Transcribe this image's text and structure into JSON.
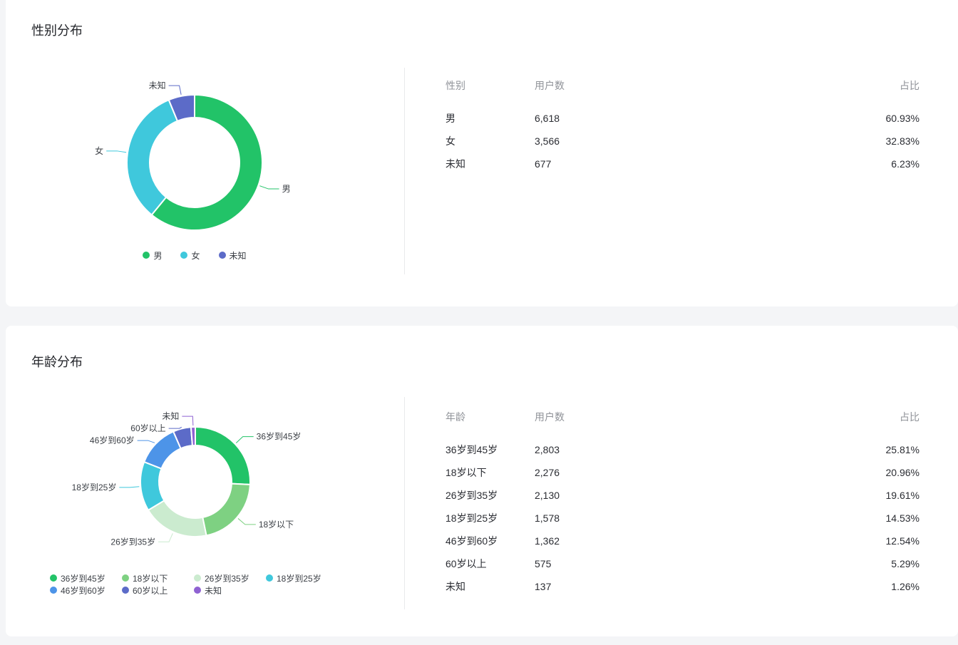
{
  "page": {
    "background": "#f4f5f7",
    "card_background": "#ffffff"
  },
  "sections": [
    {
      "id": "gender",
      "title": "性别分布",
      "table": {
        "headers": [
          "性别",
          "用户数",
          "占比"
        ],
        "rows": [
          {
            "label": "男",
            "count": "6,618",
            "percent": "60.93%"
          },
          {
            "label": "女",
            "count": "3,566",
            "percent": "32.83%"
          },
          {
            "label": "未知",
            "count": "677",
            "percent": "6.23%"
          }
        ]
      }
    },
    {
      "id": "age",
      "title": "年龄分布",
      "table": {
        "headers": [
          "年龄",
          "用户数",
          "占比"
        ],
        "rows": [
          {
            "label": "36岁到45岁",
            "count": "2,803",
            "percent": "25.81%"
          },
          {
            "label": "18岁以下",
            "count": "2,276",
            "percent": "20.96%"
          },
          {
            "label": "26岁到35岁",
            "count": "2,130",
            "percent": "19.61%"
          },
          {
            "label": "18岁到25岁",
            "count": "1,578",
            "percent": "14.53%"
          },
          {
            "label": "46岁到60岁",
            "count": "1,362",
            "percent": "12.54%"
          },
          {
            "label": "60岁以上",
            "count": "575",
            "percent": "5.29%"
          },
          {
            "label": "未知",
            "count": "137",
            "percent": "1.26%"
          }
        ]
      }
    }
  ],
  "chart_data": [
    {
      "type": "pie",
      "variant": "donut",
      "title": "性别分布",
      "legend_position": "bottom",
      "legend": [
        "男",
        "女",
        "未知"
      ],
      "series": [
        {
          "name": "男",
          "value": 6618,
          "percent": 60.93,
          "color": "#22c368"
        },
        {
          "name": "女",
          "value": 3566,
          "percent": 32.83,
          "color": "#3fc8dc"
        },
        {
          "name": "未知",
          "value": 677,
          "percent": 6.23,
          "color": "#5c6bc8"
        }
      ]
    },
    {
      "type": "pie",
      "variant": "donut",
      "title": "年龄分布",
      "legend_position": "bottom",
      "legend": [
        "36岁到45岁",
        "18岁以下",
        "26岁到35岁",
        "18岁到25岁",
        "46岁到60岁",
        "60岁以上",
        "未知"
      ],
      "series": [
        {
          "name": "36岁到45岁",
          "value": 2803,
          "percent": 25.81,
          "color": "#22c368"
        },
        {
          "name": "18岁以下",
          "value": 2276,
          "percent": 20.96,
          "color": "#7ed182"
        },
        {
          "name": "26岁到35岁",
          "value": 2130,
          "percent": 19.61,
          "color": "#cbebcf"
        },
        {
          "name": "18岁到25岁",
          "value": 1578,
          "percent": 14.53,
          "color": "#3fc8dc"
        },
        {
          "name": "46岁到60岁",
          "value": 1362,
          "percent": 12.54,
          "color": "#4d94e8"
        },
        {
          "name": "60岁以上",
          "value": 575,
          "percent": 5.29,
          "color": "#5c6bc8"
        },
        {
          "name": "未知",
          "value": 137,
          "percent": 1.26,
          "color": "#8f62d2"
        }
      ]
    }
  ]
}
